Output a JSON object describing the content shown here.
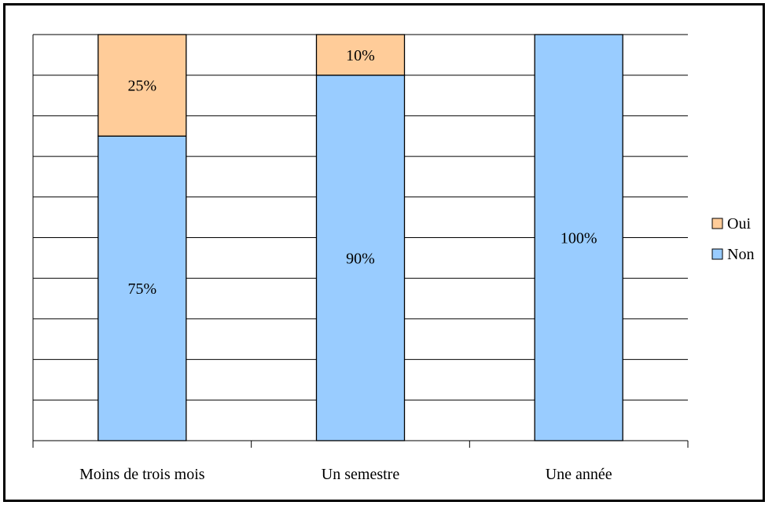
{
  "chart_data": {
    "type": "bar",
    "stacked": true,
    "percent": true,
    "categories": [
      "Moins de trois mois",
      "Un semestre",
      "Une année"
    ],
    "series": [
      {
        "name": "Non",
        "values": [
          75,
          90,
          100
        ],
        "labels": [
          "75%",
          "90%",
          "100%"
        ],
        "color": "#99ccff"
      },
      {
        "name": "Oui",
        "values": [
          25,
          10,
          0
        ],
        "labels": [
          "25%",
          "10%",
          ""
        ],
        "color": "#ffcc99"
      }
    ],
    "legend_order": [
      "Oui",
      "Non"
    ],
    "ylim": [
      0,
      100
    ],
    "gridlines": true,
    "legend_position": "right",
    "title": "",
    "xlabel": "",
    "ylabel": ""
  }
}
